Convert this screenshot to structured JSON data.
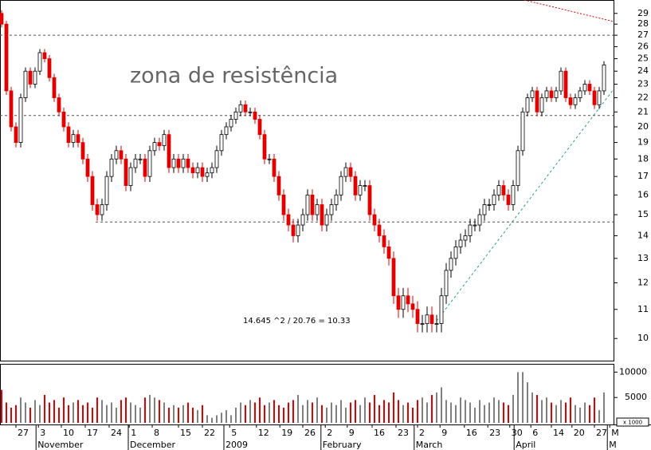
{
  "chart_data": {
    "type": "candlestick",
    "annotations": [
      "zona de resistência",
      "14.645 ^2 / 20.76 = 10.33"
    ],
    "open": [
      29,
      28,
      22.5,
      20,
      19,
      22,
      24,
      23,
      24,
      25.5,
      25,
      23.5,
      22,
      21,
      20,
      19,
      19.5,
      19,
      18,
      17,
      15.5,
      15,
      15.5,
      17,
      18,
      18.5,
      18,
      16.5,
      17.5,
      18,
      18,
      17,
      18.5,
      19,
      18.8,
      19.5,
      17.5,
      18,
      17.5,
      18,
      17.5,
      17.2,
      17.5,
      17,
      17.2,
      17.5,
      18.5,
      19.5,
      20,
      20.5,
      21,
      21.5,
      21,
      21,
      20.5,
      19.5,
      18,
      18,
      17,
      16,
      15,
      14.5,
      14,
      14.5,
      15,
      16,
      15,
      15.5,
      14.5,
      15,
      15.5,
      16,
      17,
      17.5,
      17,
      16,
      16.5,
      16.5,
      15,
      14.5,
      14,
      13.5,
      13,
      11.5,
      11,
      11.5,
      11.2,
      11,
      10.5,
      10.5,
      10.8,
      10.5,
      10.5,
      11.5,
      12.5,
      13,
      13.5,
      13.8,
      14,
      14.5,
      14.5,
      15,
      15.5,
      15.5,
      16,
      16.5,
      16,
      15.5,
      16.5,
      18.5,
      21,
      22,
      22.5,
      21,
      22,
      22.5,
      22,
      22.5,
      24,
      22,
      21.5,
      22,
      22.5,
      23,
      22.5,
      21.5,
      22.5
    ],
    "high": [
      29.3,
      28.3,
      22.8,
      20.3,
      22.3,
      24.3,
      24.3,
      24.3,
      25.8,
      25.8,
      25.3,
      23.8,
      22.3,
      21.3,
      20.3,
      19.8,
      19.8,
      19.3,
      18.3,
      17.3,
      15.8,
      15.8,
      17.3,
      18.3,
      18.8,
      18.8,
      18.3,
      17.8,
      18.3,
      18.3,
      18.3,
      18.8,
      19.3,
      19.3,
      19.8,
      19.8,
      18.3,
      18.3,
      18.3,
      18.3,
      17.8,
      17.8,
      17.8,
      17.5,
      17.8,
      18.8,
      19.8,
      20.3,
      20.8,
      21.3,
      21.8,
      21.8,
      21.3,
      21.3,
      20.8,
      19.8,
      18.3,
      18.3,
      17.3,
      16.3,
      15.3,
      14.8,
      14.8,
      15.3,
      16.3,
      16.3,
      15.8,
      15.8,
      15.3,
      15.8,
      16.3,
      17.3,
      17.8,
      17.8,
      17.3,
      16.8,
      16.8,
      16.8,
      15.3,
      14.8,
      14.3,
      13.8,
      13.3,
      11.8,
      11.8,
      11.8,
      11.5,
      11.3,
      10.8,
      11.1,
      11.1,
      10.8,
      11.8,
      12.8,
      13.3,
      13.8,
      14.1,
      14.3,
      14.8,
      14.8,
      15.3,
      15.8,
      15.8,
      16.3,
      16.8,
      16.8,
      16.3,
      16.8,
      18.8,
      21.3,
      22.3,
      22.8,
      22.8,
      22.3,
      22.8,
      22.8,
      22.8,
      24.3,
      24.3,
      22.3,
      22.3,
      22.8,
      23.3,
      23.3,
      22.8,
      22.8,
      24.8
    ],
    "low": [
      27.7,
      22.2,
      19.7,
      18.7,
      18.7,
      21.7,
      22.7,
      22.7,
      23.7,
      24.7,
      23.2,
      21.7,
      20.7,
      19.7,
      18.7,
      18.7,
      18.7,
      17.7,
      16.7,
      15.2,
      14.7,
      14.7,
      15.2,
      16.7,
      17.7,
      17.7,
      16.2,
      16.2,
      17.2,
      17.7,
      16.7,
      16.7,
      18.2,
      18.5,
      18.5,
      17.2,
      17.2,
      17.2,
      17.2,
      17.2,
      16.9,
      16.9,
      16.7,
      16.7,
      16.9,
      17.2,
      18.2,
      19.2,
      19.7,
      20.2,
      20.7,
      20.7,
      20.7,
      20.2,
      19.2,
      17.7,
      17.7,
      16.7,
      15.7,
      14.7,
      14.2,
      13.7,
      13.7,
      14.2,
      14.7,
      14.7,
      14.7,
      14.2,
      14.2,
      14.7,
      15.2,
      15.7,
      16.7,
      16.7,
      15.7,
      15.7,
      16.2,
      14.7,
      14.2,
      13.7,
      13.2,
      12.7,
      11.2,
      10.7,
      10.7,
      10.9,
      10.7,
      10.2,
      10.2,
      10.2,
      10.2,
      10.2,
      10.2,
      11.2,
      12.2,
      12.7,
      13.2,
      13.5,
      13.7,
      14.2,
      14.2,
      14.7,
      15.2,
      15.2,
      15.7,
      15.7,
      15.2,
      15.2,
      16.2,
      18.2,
      20.7,
      21.7,
      20.7,
      20.7,
      21.7,
      21.7,
      21.7,
      22.2,
      21.7,
      21.2,
      21.2,
      21.7,
      22.2,
      22.2,
      21.2,
      21.2,
      22.2
    ],
    "close": [
      28,
      22.5,
      20,
      19,
      22,
      24,
      23,
      24,
      25.5,
      25,
      23.5,
      22,
      21,
      20,
      19,
      19.5,
      19,
      18,
      17,
      15.5,
      15,
      15.5,
      17,
      18,
      18.5,
      18,
      16.5,
      17.5,
      18,
      18,
      17,
      18.5,
      19,
      18.8,
      19.5,
      17.5,
      18,
      17.5,
      18,
      17.5,
      17.2,
      17.5,
      17,
      17.2,
      17.5,
      18.5,
      19.5,
      20,
      20.5,
      21,
      21.5,
      21,
      21,
      20.5,
      19.5,
      18,
      18,
      17,
      16,
      15,
      14.5,
      14,
      14.5,
      15,
      16,
      15,
      15.5,
      14.5,
      15,
      15.5,
      16,
      17,
      17.5,
      17,
      16,
      16.5,
      16.5,
      15,
      14.5,
      14,
      13.5,
      13,
      11.5,
      11,
      11.5,
      11.2,
      11,
      10.5,
      10.5,
      10.8,
      10.5,
      10.5,
      11.5,
      12.5,
      13,
      13.5,
      13.8,
      14,
      14.5,
      14.5,
      15,
      15.5,
      15.5,
      16,
      16.5,
      16,
      15.5,
      16.5,
      18.5,
      21,
      22,
      22.5,
      21,
      22,
      22.5,
      22,
      22.5,
      24,
      22,
      21.5,
      22,
      22.5,
      23,
      22.5,
      21.5,
      22.5,
      24.5
    ],
    "volume": [
      6500,
      4000,
      3000,
      3500,
      5000,
      4000,
      3000,
      4500,
      3500,
      5500,
      4000,
      4500,
      3000,
      5000,
      3500,
      4000,
      4500,
      3500,
      4000,
      3000,
      5000,
      4500,
      3500,
      4000,
      3000,
      4500,
      5000,
      4000,
      3500,
      3000,
      5000,
      5500,
      5000,
      4500,
      4000,
      3000,
      3500,
      3000,
      3500,
      4000,
      3000,
      2500,
      3500,
      1500,
      1000,
      1500,
      2000,
      2500,
      1500,
      3000,
      4000,
      3500,
      4500,
      4000,
      5000,
      3500,
      4000,
      4500,
      3500,
      3000,
      4000,
      4500,
      5500,
      3500,
      4500,
      4000,
      5000,
      3500,
      3000,
      4000,
      3500,
      4500,
      3000,
      4000,
      4500,
      3500,
      5000,
      4000,
      5500,
      3500,
      4500,
      4000,
      6000,
      4500,
      3500,
      4000,
      3000,
      4500,
      5000,
      4000,
      5500,
      6000,
      7000,
      4500,
      4000,
      3500,
      5000,
      4500,
      4000,
      3000,
      4500,
      3500,
      4000,
      5000,
      4500,
      4000,
      3500,
      5500,
      10000,
      10000,
      8000,
      6000,
      5500,
      4500,
      5000,
      4000,
      3500,
      4500,
      4000,
      5000,
      3500,
      3000,
      4000,
      3500,
      5000,
      2500,
      6000
    ],
    "up_color": "#ffffff",
    "down_color": "#e00000",
    "volume_up_color": "#808080",
    "log_scale": true,
    "xlim": [
      0,
      127
    ],
    "ylim": [
      9.3,
      30.3
    ],
    "yticks": [
      10,
      11,
      12,
      13,
      14,
      15,
      16,
      17,
      18,
      19,
      20,
      21,
      22,
      23,
      24,
      25,
      26,
      27,
      28,
      29
    ],
    "y2lim": [
      0,
      11000
    ],
    "y2ticks": [
      5000,
      10000
    ],
    "volume_unit": "x 1000",
    "levels": [
      27,
      20.76,
      14.645
    ],
    "xticks": [
      {
        "value": 3,
        "label": "27"
      },
      {
        "value": 7.7,
        "label": "3"
      },
      {
        "value": 12.5,
        "label": "10"
      },
      {
        "value": 17.5,
        "label": "17"
      },
      {
        "value": 22.5,
        "label": "24"
      },
      {
        "value": 26.7,
        "label": "1"
      },
      {
        "value": 31.5,
        "label": "8"
      },
      {
        "value": 37,
        "label": "15"
      },
      {
        "value": 42,
        "label": "22"
      },
      {
        "value": 47.7,
        "label": "5"
      },
      {
        "value": 53.3,
        "label": "12"
      },
      {
        "value": 58.2,
        "label": "19"
      },
      {
        "value": 63,
        "label": "26"
      },
      {
        "value": 67.7,
        "label": "2"
      },
      {
        "value": 72.3,
        "label": "9"
      },
      {
        "value": 77.5,
        "label": "16"
      },
      {
        "value": 82.5,
        "label": "23"
      },
      {
        "value": 87,
        "label": "2"
      },
      {
        "value": 91.7,
        "label": "9"
      },
      {
        "value": 96.8,
        "label": "16"
      },
      {
        "value": 101.7,
        "label": "23"
      },
      {
        "value": 106.3,
        "label": "30"
      },
      {
        "value": 110.7,
        "label": "6"
      },
      {
        "value": 115,
        "label": "14"
      },
      {
        "value": 119.3,
        "label": "20"
      },
      {
        "value": 124,
        "label": "27"
      },
      {
        "value": 127.2,
        "label": "M"
      }
    ],
    "months": [
      {
        "value": 7.2,
        "label": "November"
      },
      {
        "value": 26.5,
        "label": "December"
      },
      {
        "value": 46.5,
        "label": "2009"
      },
      {
        "value": 66.8,
        "label": "February"
      },
      {
        "value": 86.3,
        "label": "March"
      },
      {
        "value": 107.2,
        "label": "April"
      },
      {
        "value": 126.7,
        "label": "M"
      }
    ]
  }
}
